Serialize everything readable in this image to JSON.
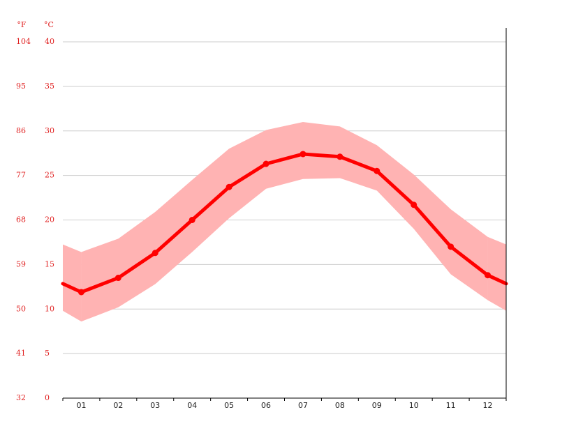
{
  "chart_data": {
    "type": "line",
    "y_label": "°C",
    "y2_label": "°F",
    "categories": [
      "01",
      "02",
      "03",
      "04",
      "05",
      "06",
      "07",
      "08",
      "09",
      "10",
      "11",
      "12"
    ],
    "values": [
      11.9,
      13.5,
      16.3,
      20.0,
      23.7,
      26.3,
      27.4,
      27.1,
      25.5,
      21.7,
      17.0,
      13.8
    ],
    "upper": [
      16.4,
      17.9,
      20.9,
      24.5,
      28.0,
      30.1,
      31.0,
      30.5,
      28.4,
      25.1,
      21.2,
      18.1
    ],
    "lower": [
      8.6,
      10.2,
      12.8,
      16.4,
      20.2,
      23.5,
      24.6,
      24.7,
      23.3,
      19.0,
      13.9,
      11.0
    ],
    "color": "#ff0000",
    "band_color": "#ffb3b3",
    "ylim": [
      0,
      40
    ],
    "yticks": [
      0,
      5,
      10,
      15,
      20,
      25,
      30,
      35,
      40
    ],
    "y2lim": [
      32,
      104
    ],
    "y2ticks": [
      32,
      41,
      50,
      59,
      68,
      77,
      86,
      95,
      104
    ],
    "grid": true
  }
}
